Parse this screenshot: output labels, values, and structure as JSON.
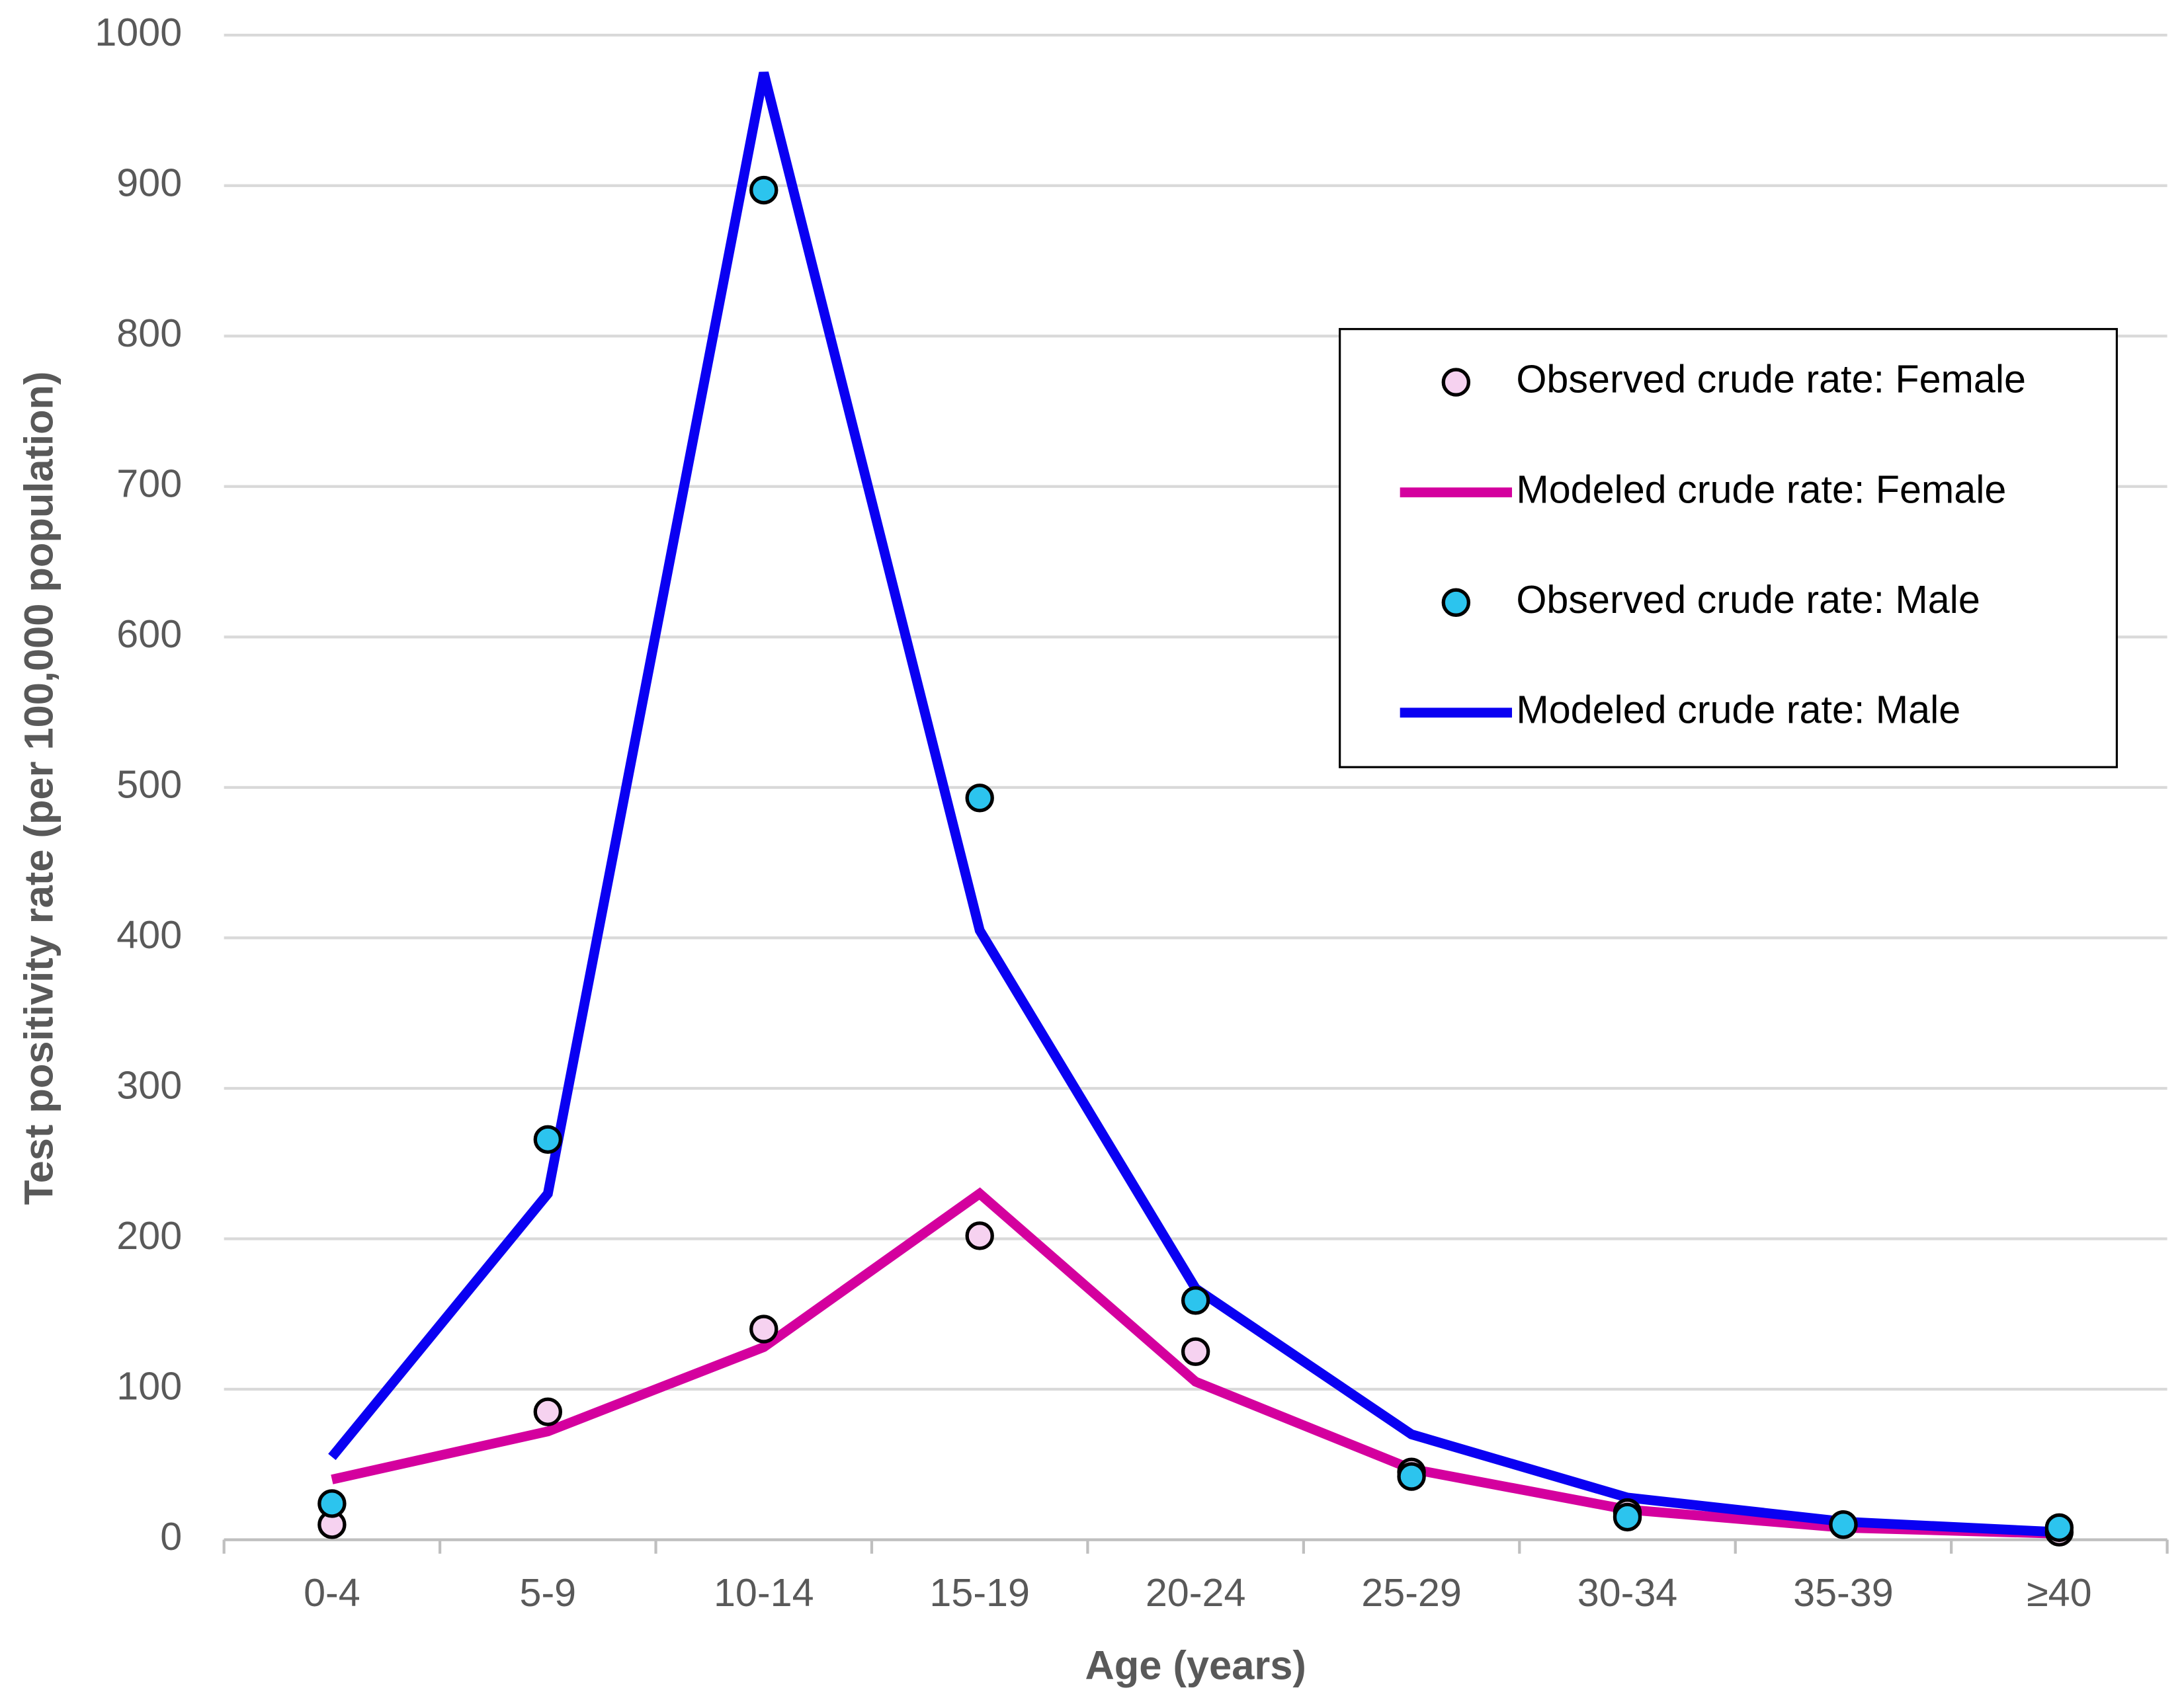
{
  "chart_data": {
    "type": "line",
    "x_label": "Age (years)",
    "y_label": "Test positivity rate (per 100,000 population)",
    "categories": [
      "0-4",
      "5-9",
      "10-14",
      "15-19",
      "20-24",
      "25-29",
      "30-34",
      "35-39",
      "≥40"
    ],
    "series": [
      {
        "name": "Observed crude rate: Female",
        "color": "#f6d2f0",
        "mode": "markers",
        "values": [
          10,
          85,
          140,
          202,
          125,
          45,
          18,
          10,
          5
        ]
      },
      {
        "name": "Modeled crude rate: Female",
        "color": "#d4009e",
        "mode": "lines",
        "values": [
          40,
          72,
          128,
          230,
          105,
          47,
          20,
          8,
          4
        ]
      },
      {
        "name": "Observed crude rate: Male",
        "color": "#2cc4ee",
        "mode": "markers",
        "values": [
          24,
          266,
          897,
          493,
          159,
          42,
          15,
          10,
          8
        ]
      },
      {
        "name": "Modeled crude rate: Male",
        "color": "#0a00f2",
        "mode": "lines",
        "values": [
          55,
          230,
          975,
          405,
          167,
          70,
          28,
          12,
          5
        ]
      }
    ],
    "ylim": [
      0,
      1000
    ],
    "yticks": [
      0,
      100,
      200,
      300,
      400,
      500,
      600,
      700,
      800,
      900,
      1000
    ],
    "grid": true,
    "legend": "upper right"
  }
}
